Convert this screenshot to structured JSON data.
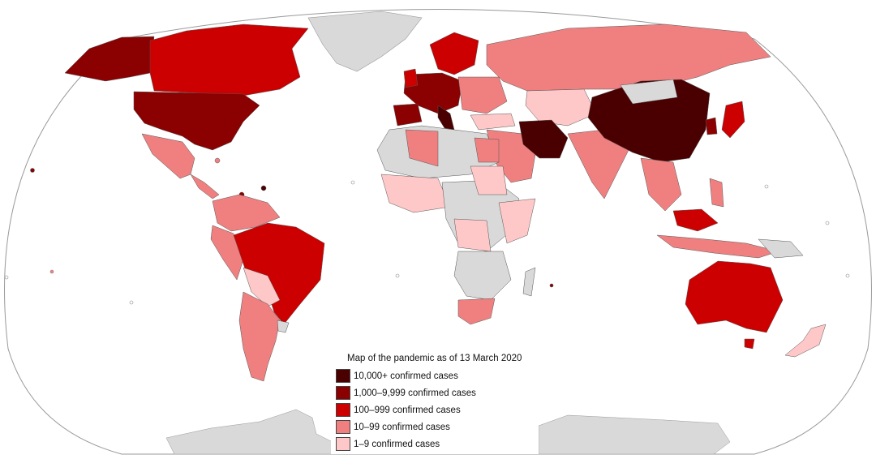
{
  "legend": {
    "title": "Map of the pandemic as of 13 March 2020",
    "items": [
      {
        "label": "10,000+ confirmed cases",
        "color": "#4a0000"
      },
      {
        "label": "1,000–9,999 confirmed cases",
        "color": "#8b0000"
      },
      {
        "label": "100–999 confirmed cases",
        "color": "#cc0000"
      },
      {
        "label": "10–99 confirmed cases",
        "color": "#f08080"
      },
      {
        "label": "1–9 confirmed cases",
        "color": "#ffc8c8"
      }
    ]
  },
  "colors": {
    "ocean": "#ffffff",
    "no_cases": "#d9d9d9",
    "border": "#888888",
    "frame": "#999999"
  }
}
